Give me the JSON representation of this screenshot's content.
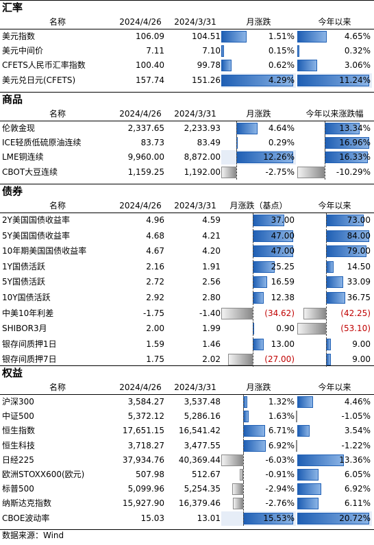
{
  "fx": {
    "title": "汇率",
    "headers": [
      "名称",
      "2024/4/26",
      "2024/3/31",
      "月涨跌",
      "今年以来"
    ],
    "rows": [
      {
        "name": "美元指数",
        "d1": "106.09",
        "d2": "104.51",
        "m": "1.51%",
        "y": "4.65%",
        "mv": 1.51,
        "yv": 4.65
      },
      {
        "name": "美元中间价",
        "d1": "7.11",
        "d2": "7.10",
        "m": "0.15%",
        "y": "0.32%",
        "mv": 0.15,
        "yv": 0.32
      },
      {
        "name": "CFETS人民币汇率指数",
        "d1": "100.40",
        "d2": "99.78",
        "m": "0.62%",
        "y": "3.06%",
        "mv": 0.62,
        "yv": 3.06
      },
      {
        "name": "美元兑日元(CFETS)",
        "d1": "157.74",
        "d2": "151.26",
        "m": "4.29%",
        "y": "11.24%",
        "mv": 4.29,
        "yv": 11.24
      }
    ]
  },
  "commodity": {
    "title": "商品",
    "headers": [
      "名称",
      "2024/4/26",
      "2024/3/31",
      "月涨跌",
      "今年以来涨跌幅"
    ],
    "rows": [
      {
        "name": "伦敦金现",
        "d1": "2,337.65",
        "d2": "2,233.93",
        "m": "4.64%",
        "y": "13.34%",
        "mv": 4.64,
        "yv": 13.34
      },
      {
        "name": "ICE轻质低硫原油连续",
        "d1": "83.73",
        "d2": "83.49",
        "m": "0.29%",
        "y": "16.96%",
        "mv": 0.29,
        "yv": 16.96
      },
      {
        "name": "LME铜连续",
        "d1": "9,960.00",
        "d2": "8,872.00",
        "m": "12.26%",
        "y": "16.33%",
        "mv": 12.26,
        "yv": 16.33
      },
      {
        "name": "CBOT大豆连续",
        "d1": "1,159.25",
        "d2": "1,192.00",
        "m": "-2.75%",
        "y": "-10.29%",
        "mv": -2.75,
        "yv": -10.29
      }
    ]
  },
  "bond": {
    "title": "债券",
    "headers": [
      "名称",
      "2024/4/26",
      "2024/3/31",
      "月涨跌（基点）",
      "今年以来"
    ],
    "rows": [
      {
        "name": "2Y美国国债收益率",
        "d1": "4.96",
        "d2": "4.59",
        "m": "37.00",
        "y": "73.00",
        "mv": 37.0,
        "yv": 73.0
      },
      {
        "name": "5Y美国国债收益率",
        "d1": "4.68",
        "d2": "4.21",
        "m": "47.00",
        "y": "84.00",
        "mv": 47.0,
        "yv": 84.0
      },
      {
        "name": "10年期美国国债收益率",
        "d1": "4.67",
        "d2": "4.20",
        "m": "47.00",
        "y": "79.00",
        "mv": 47.0,
        "yv": 79.0
      },
      {
        "name": "1Y国债活跃",
        "d1": "2.16",
        "d2": "1.91",
        "m": "25.25",
        "y": "14.50",
        "mv": 25.25,
        "yv": 14.5
      },
      {
        "name": "5Y国债活跃",
        "d1": "2.72",
        "d2": "2.56",
        "m": "16.59",
        "y": "33.09",
        "mv": 16.59,
        "yv": 33.09
      },
      {
        "name": "10Y国债活跃",
        "d1": "2.92",
        "d2": "2.80",
        "m": "12.38",
        "y": "36.75",
        "mv": 12.38,
        "yv": 36.75
      },
      {
        "name": "中美10年利差",
        "d1": "-1.75",
        "d2": "-1.40",
        "m": "(34.62)",
        "y": "(42.25)",
        "mv": -34.62,
        "yv": -42.25
      },
      {
        "name": "SHIBOR3月",
        "d1": "2.00",
        "d2": "1.99",
        "m": "0.90",
        "y": "(53.10)",
        "mv": 0.9,
        "yv": -53.1
      },
      {
        "name": "银存间质押1日",
        "d1": "1.59",
        "d2": "1.46",
        "m": "13.00",
        "y": "9.00",
        "mv": 13.0,
        "yv": 9.0
      },
      {
        "name": "银存间质押7日",
        "d1": "1.75",
        "d2": "2.02",
        "m": "(27.00)",
        "y": "9.00",
        "mv": -27.0,
        "yv": 9.0
      }
    ]
  },
  "equity": {
    "title": "权益",
    "headers": [
      "名称",
      "2024/4/26",
      "2024/3/31",
      "月涨跌",
      "今年以来"
    ],
    "rows": [
      {
        "name": "沪深300",
        "d1": "3,584.27",
        "d2": "3,537.48",
        "m": "1.32%",
        "y": "4.46%",
        "mv": 1.32,
        "yv": 4.46
      },
      {
        "name": "中证500",
        "d1": "5,372.12",
        "d2": "5,286.16",
        "m": "1.63%",
        "y": "-1.05%",
        "mv": 1.63,
        "yv": -1.05
      },
      {
        "name": "恒生指数",
        "d1": "17,651.15",
        "d2": "16,541.42",
        "m": "6.71%",
        "y": "3.54%",
        "mv": 6.71,
        "yv": 3.54
      },
      {
        "name": "恒生科技",
        "d1": "3,718.27",
        "d2": "3,477.55",
        "m": "6.92%",
        "y": "-1.22%",
        "mv": 6.92,
        "yv": -1.22
      },
      {
        "name": "日经225",
        "d1": "37,934.76",
        "d2": "40,369.44",
        "m": "-6.03%",
        "y": "13.36%",
        "mv": -6.03,
        "yv": 13.36
      },
      {
        "name": "欧洲STOXX600(欧元)",
        "d1": "507.98",
        "d2": "512.67",
        "m": "-0.91%",
        "y": "6.05%",
        "mv": -0.91,
        "yv": 6.05
      },
      {
        "name": "标普500",
        "d1": "5,099.96",
        "d2": "5,254.35",
        "m": "-2.94%",
        "y": "6.92%",
        "mv": -2.94,
        "yv": 6.92
      },
      {
        "name": "纳斯达克指数",
        "d1": "15,927.90",
        "d2": "16,379.46",
        "m": "-2.76%",
        "y": "6.11%",
        "mv": -2.76,
        "yv": 6.11
      },
      {
        "name": "CBOE波动率",
        "d1": "15.03",
        "d2": "13.01",
        "m": "15.53%",
        "y": "20.72%",
        "mv": 15.53,
        "yv": 20.72
      }
    ]
  },
  "footer": {
    "source": "数据来源：Wind"
  }
}
